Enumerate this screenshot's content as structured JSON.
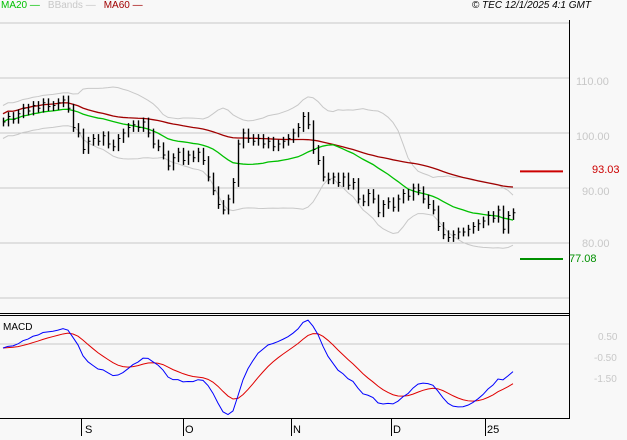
{
  "legend": [
    {
      "label": "MA20",
      "color": "#00c000"
    },
    {
      "label": "BBands",
      "color": "#c8c8c8"
    },
    {
      "label": "MA60",
      "color": "#a00000"
    }
  ],
  "copyright": "© TEC 12/1/2025 4:1 GMT",
  "chart_data": [
    {
      "type": "bar",
      "subtype": "ohlc",
      "indicators": [
        "MA20",
        "BBands",
        "MA60"
      ],
      "y_tick_labels": [
        "110.00",
        "100.00",
        "90.00",
        "80.00"
      ],
      "y_ticks": [
        110,
        100,
        90,
        80
      ],
      "ylim": [
        67,
        122
      ],
      "grid": true,
      "x_tick_labels": [
        "S",
        "O",
        "N",
        "D",
        "25"
      ],
      "levels": [
        {
          "label": "93.03",
          "value": 93.03,
          "color": "#cc0000"
        },
        {
          "label": "77.08",
          "value": 77.08,
          "color": "#009000"
        }
      ],
      "closes": [
        102,
        103,
        102.5,
        103.5,
        104.5,
        104,
        105,
        104.5,
        105.5,
        104.8,
        105,
        105.5,
        106,
        104.5,
        101,
        100,
        97,
        98.5,
        99,
        98.5,
        99.5,
        98,
        97.5,
        99,
        100,
        101,
        101.5,
        101,
        102,
        100,
        98,
        97.5,
        96,
        94,
        95.5,
        96.5,
        95,
        96,
        95.5,
        96.5,
        95,
        92,
        89.5,
        87,
        86,
        88,
        91,
        98,
        100,
        99,
        98.5,
        99,
        98,
        98.5,
        97.5,
        98,
        98.5,
        99,
        100,
        101,
        103,
        101.5,
        97,
        95,
        92,
        91.5,
        92,
        91,
        92,
        90.5,
        91,
        88,
        87.5,
        89,
        88,
        85.5,
        87,
        87.5,
        86.5,
        88,
        89,
        88.5,
        90,
        89.5,
        88,
        87,
        86,
        83,
        81.5,
        81,
        81.5,
        82,
        82,
        82.5,
        83,
        83.5,
        84,
        85,
        84.5,
        86,
        82.5,
        85,
        85.5
      ]
    },
    {
      "type": "line",
      "title": "MACD",
      "y_tick_labels": [
        "0.50",
        "-0.50",
        "-1.50"
      ],
      "y_ticks": [
        0.5,
        -0.5,
        -1.5
      ],
      "series_colors": [
        "#0000ff",
        "#e00000"
      ]
    }
  ]
}
